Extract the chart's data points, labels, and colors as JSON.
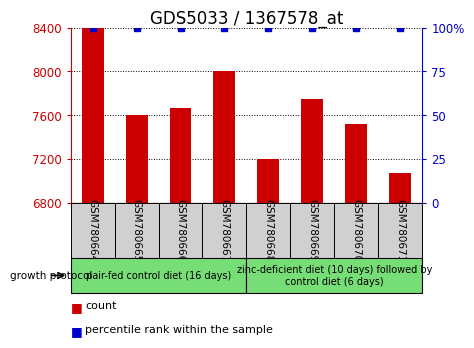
{
  "title": "GDS5033 / 1367578_at",
  "samples": [
    "GSM780664",
    "GSM780665",
    "GSM780666",
    "GSM780667",
    "GSM780668",
    "GSM780669",
    "GSM780670",
    "GSM780671"
  ],
  "counts": [
    8400,
    7600,
    7670,
    8000,
    7200,
    7750,
    7520,
    7070
  ],
  "percentile_ranks": [
    100,
    100,
    100,
    100,
    100,
    100,
    100,
    100
  ],
  "ylim_left": [
    6800,
    8400
  ],
  "ylim_right": [
    0,
    100
  ],
  "yticks_left": [
    6800,
    7200,
    7600,
    8000,
    8400
  ],
  "yticks_right": [
    0,
    25,
    50,
    75,
    100
  ],
  "bar_color": "#cc0000",
  "marker_color": "#0000cc",
  "bg_sample_box": "#d0d0d0",
  "bg_group": "#77dd77",
  "group1_label": "pair-fed control diet (16 days)",
  "group2_label": "zinc-deficient diet (10 days) followed by\ncontrol diet (6 days)",
  "group1_count": 4,
  "group2_count": 4,
  "legend_count_label": "count",
  "legend_percentile_label": "percentile rank within the sample",
  "growth_protocol_label": "growth protocol",
  "title_fontsize": 12,
  "tick_fontsize": 8.5,
  "sample_fontsize": 7.5,
  "group_fontsize": 7,
  "legend_fontsize": 8
}
